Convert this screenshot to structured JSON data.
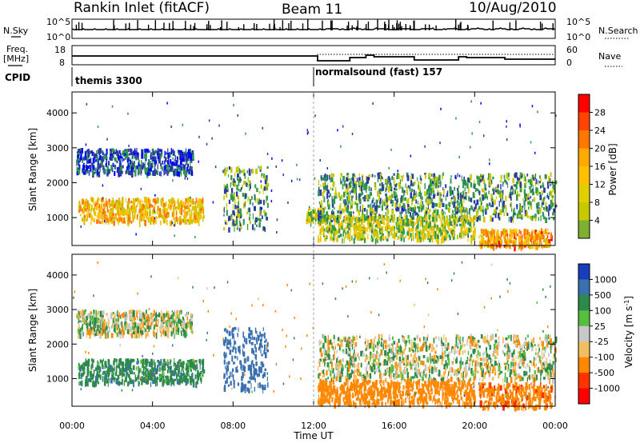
{
  "header": {
    "station": "Rankin Inlet (fitACF)",
    "beam": "Beam 11",
    "date": "10/Aug/2010"
  },
  "params": {
    "nsky_label": "N.Sky",
    "nsearch_label": "N.Search",
    "freq_label_1": "Freq.",
    "freq_label_2": "[MHz]",
    "nave_label": "Nave",
    "cpid_label": "CPID",
    "nsky_ticks": [
      "10^5",
      "10^0"
    ],
    "nsearch_ticks": [
      "10^5",
      "10^0"
    ],
    "freq_ticks": [
      "18",
      "8"
    ],
    "nave_ticks": [
      "60",
      "0"
    ],
    "cpid_segments": [
      {
        "label": "themis 3300",
        "start_hour": 0
      },
      {
        "label": "normalsound (fast) 157",
        "start_hour": 12
      }
    ]
  },
  "chart_data": [
    {
      "type": "heatmap",
      "panel": "power",
      "ylabel": "Slant Range [km]",
      "xlabel": "",
      "xlim": [
        0,
        24
      ],
      "ylim": [
        200,
        4600
      ],
      "yticks": [
        "1000",
        "2000",
        "3000",
        "4000"
      ],
      "colorbar": {
        "label": "Power [dB]",
        "ticks": [
          "28",
          "24",
          "20",
          "16",
          "12",
          "8",
          "4"
        ],
        "colors": [
          "#ff0000",
          "#ff7700",
          "#ffc000",
          "#c8c800",
          "#2e9a4a",
          "#2a3aa0",
          "#0000ff"
        ]
      },
      "echo_regions": [
        {
          "x": [
            0.2,
            6.0
          ],
          "range_km": [
            2300,
            3000
          ],
          "power_db": 8
        },
        {
          "x": [
            0.3,
            6.5
          ],
          "range_km": [
            900,
            1600
          ],
          "power_db": 20
        },
        {
          "x": [
            7.5,
            9.7
          ],
          "range_km": [
            700,
            2500
          ],
          "power_db": 12
        },
        {
          "x": [
            11.6,
            12.5
          ],
          "range_km": [
            900,
            1300
          ],
          "power_db": 16
        },
        {
          "x": [
            12.2,
            24.0
          ],
          "range_km": [
            1000,
            2300
          ],
          "power_db": 12
        },
        {
          "x": [
            12.2,
            20.0
          ],
          "range_km": [
            400,
            1100
          ],
          "power_db": 16
        },
        {
          "x": [
            20.2,
            23.8
          ],
          "range_km": [
            200,
            700
          ],
          "power_db": 22
        }
      ]
    },
    {
      "type": "heatmap",
      "panel": "velocity",
      "ylabel": "Slant Range [km]",
      "xlabel": "Time UT",
      "xlim": [
        0,
        24
      ],
      "ylim": [
        200,
        4600
      ],
      "yticks": [
        "1000",
        "2000",
        "3000",
        "4000"
      ],
      "xticks": [
        "00:00",
        "04:00",
        "08:00",
        "12:00",
        "16:00",
        "20:00",
        "00:00"
      ],
      "colorbar": {
        "label": "Velocity [m s^-1]",
        "ticks": [
          "1000",
          "500",
          "100",
          "25",
          "-25",
          "-100",
          "-500",
          "-1000"
        ],
        "colors": [
          "#1a3dbd",
          "#3a70b0",
          "#2e8a4a",
          "#55c040",
          "#c8c8c8",
          "#f0c060",
          "#ff8800",
          "#ff3300",
          "#ff0000"
        ]
      },
      "echo_regions": [
        {
          "x": [
            0.2,
            6.0
          ],
          "range_km": [
            2300,
            3000
          ],
          "velocity": 0
        },
        {
          "x": [
            0.3,
            6.5
          ],
          "range_km": [
            900,
            1600
          ],
          "velocity": 200
        },
        {
          "x": [
            7.5,
            9.7
          ],
          "range_km": [
            700,
            2500
          ],
          "velocity": 500
        },
        {
          "x": [
            12.2,
            24.0
          ],
          "range_km": [
            1000,
            2300
          ],
          "velocity": 0
        },
        {
          "x": [
            12.2,
            20.0
          ],
          "range_km": [
            300,
            1000
          ],
          "velocity": -300
        },
        {
          "x": [
            20.2,
            23.8
          ],
          "range_km": [
            200,
            900
          ],
          "velocity": -400
        }
      ]
    }
  ]
}
